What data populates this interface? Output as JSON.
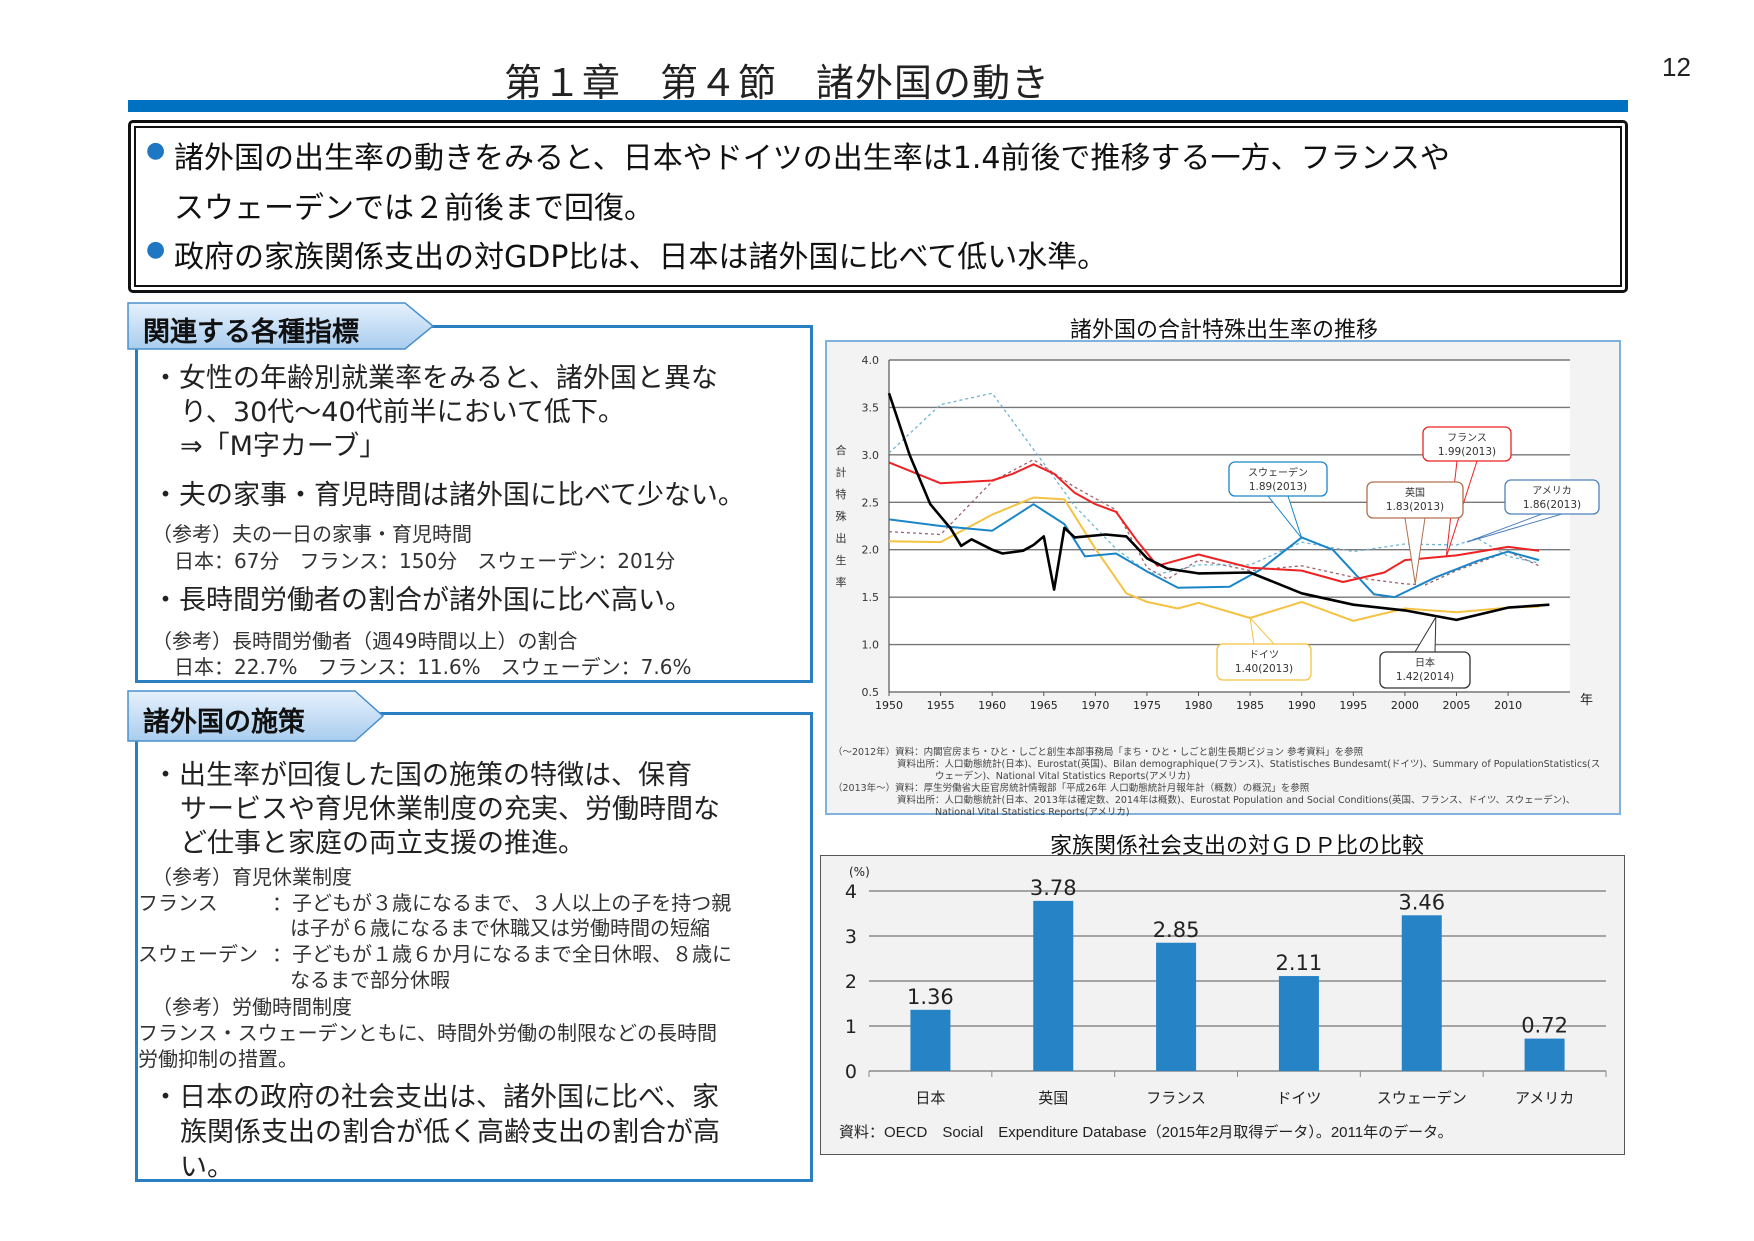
{
  "header": {
    "title": "第１章　第４節　諸外国の動き",
    "page_number": "12",
    "accent_color": "#0070c0"
  },
  "summary": {
    "lines": [
      "諸外国の出生率の動きをみると、日本やドイツの出生率は1.4前後で推移する一方、フランスや",
      "スウェーデンでは２前後まで回復。",
      "政府の家族関係支出の対GDP比は、日本は諸外国に比べて低い水準。"
    ]
  },
  "indicators": {
    "heading": "関連する各種指標",
    "items": [
      "・女性の年齢別就業率をみると、諸外国と異な",
      "り、30代～40代前半において低下。",
      "⇒「M字カーブ」",
      "・夫の家事・育児時間は諸外国に比べて少ない。",
      "（参考）夫の一日の家事・育児時間",
      "日本：67分　フランス：150分　スウェーデン：201分",
      "・長時間労働者の割合が諸外国に比べ高い。",
      "（参考）長時間労働者（週49時間以上）の割合",
      "日本：22.7%　フランス：11.6%　スウェーデン：7.6%"
    ]
  },
  "policies": {
    "heading": "諸外国の施策",
    "items": [
      "・出生率が回復した国の施策の特徴は、保育",
      "サービスや育児休業制度の充実、労働時間な",
      "ど仕事と家庭の両立支援の推進。",
      "（参考）育児休業制度",
      "フランス",
      "：子どもが３歳になるまで、３人以上の子を持つ親",
      "は子が６歳になるまで休職又は労働時間の短縮",
      "スウェーデン",
      "：子どもが１歳６か月になるまで全日休暇、８歳に",
      "なるまで部分休暇",
      "（参考）労働時間制度",
      "フランス・スウェーデンともに、時間外労働の制限などの長時間",
      "労働抑制の措置。",
      "・日本の政府の社会支出は、諸外国に比べ、家",
      "族関係支出の割合が低く高齢支出の割合が高",
      "い。"
    ]
  },
  "chart_data": [
    {
      "type": "line",
      "title": "諸外国の合計特殊出生率の推移",
      "xlabel": "年",
      "ylabel": "合計特殊出生率",
      "ylim": [
        0.5,
        4.0
      ],
      "yticks": [
        "4.0",
        "3.5",
        "3.0",
        "2.5",
        "2.0",
        "1.5",
        "1.0",
        "0.5"
      ],
      "xticks": [
        "1950",
        "1955",
        "1960",
        "1965",
        "1970",
        "1975",
        "1980",
        "1985",
        "1990",
        "1995",
        "2000",
        "2005",
        "2010"
      ],
      "grid": true,
      "series": [
        {
          "name": "日本",
          "color": "#000000",
          "style": "solid",
          "x": [
            1950,
            1952,
            1954,
            1956,
            1957,
            1958,
            1960,
            1961,
            1963,
            1964,
            1965,
            1966,
            1967,
            1968,
            1971,
            1973,
            1975,
            1977,
            1980,
            1985,
            1990,
            1995,
            2000,
            2005,
            2010,
            2014
          ],
          "values": [
            3.65,
            3.0,
            2.48,
            2.22,
            2.04,
            2.11,
            2.0,
            1.96,
            1.99,
            2.05,
            2.14,
            1.58,
            2.23,
            2.13,
            2.16,
            2.14,
            1.91,
            1.8,
            1.75,
            1.76,
            1.54,
            1.42,
            1.36,
            1.26,
            1.39,
            1.42
          ]
        },
        {
          "name": "フランス",
          "color": "#ee2222",
          "style": "solid",
          "x": [
            1950,
            1955,
            1960,
            1962,
            1964,
            1966,
            1968,
            1970,
            1972,
            1974,
            1976,
            1980,
            1985,
            1990,
            1994,
            1998,
            2000,
            2005,
            2010,
            2013
          ],
          "values": [
            2.92,
            2.7,
            2.73,
            2.8,
            2.9,
            2.8,
            2.6,
            2.48,
            2.4,
            2.1,
            1.83,
            1.95,
            1.81,
            1.78,
            1.66,
            1.76,
            1.89,
            1.94,
            2.03,
            1.99
          ]
        },
        {
          "name": "スウェーデン",
          "color": "#1a86c8",
          "style": "solid",
          "x": [
            1950,
            1955,
            1960,
            1964,
            1967,
            1969,
            1972,
            1975,
            1978,
            1983,
            1986,
            1990,
            1993,
            1997,
            1999,
            2003,
            2007,
            2010,
            2013
          ],
          "values": [
            2.32,
            2.25,
            2.2,
            2.48,
            2.27,
            1.93,
            1.96,
            1.77,
            1.6,
            1.61,
            1.79,
            2.13,
            2.0,
            1.53,
            1.5,
            1.71,
            1.88,
            1.98,
            1.89
          ]
        },
        {
          "name": "ドイツ",
          "color": "#f5c242",
          "style": "solid",
          "x": [
            1950,
            1955,
            1960,
            1964,
            1967,
            1970,
            1973,
            1975,
            1978,
            1980,
            1985,
            1990,
            1995,
            2000,
            2005,
            2010,
            2013
          ],
          "values": [
            2.09,
            2.08,
            2.37,
            2.55,
            2.53,
            2.01,
            1.54,
            1.45,
            1.38,
            1.44,
            1.28,
            1.45,
            1.25,
            1.38,
            1.34,
            1.39,
            1.4
          ]
        },
        {
          "name": "アメリカ",
          "color": "#6fb3d6",
          "style": "dashed",
          "x": [
            1950,
            1955,
            1960,
            1965,
            1968,
            1972,
            1975,
            1976,
            1980,
            1985,
            1990,
            1995,
            2000,
            2005,
            2007,
            2010,
            2013
          ],
          "values": [
            3.02,
            3.53,
            3.65,
            2.91,
            2.46,
            2.01,
            1.77,
            1.74,
            1.84,
            1.84,
            2.08,
            1.98,
            2.06,
            2.05,
            2.12,
            1.93,
            1.86
          ]
        },
        {
          "name": "英国",
          "color": "#a0606a",
          "style": "dashed",
          "x": [
            1950,
            1955,
            1960,
            1964,
            1968,
            1972,
            1975,
            1977,
            1980,
            1985,
            1990,
            1995,
            2000,
            2002,
            2005,
            2010,
            2013
          ],
          "values": [
            2.19,
            2.16,
            2.72,
            2.95,
            2.66,
            2.42,
            1.81,
            1.69,
            1.89,
            1.78,
            1.83,
            1.71,
            1.64,
            1.63,
            1.78,
            1.98,
            1.83
          ]
        }
      ],
      "annotations": [
        {
          "label": "フランス",
          "value": "1.99(2013)",
          "color": "#ee2222"
        },
        {
          "label": "スウェーデン",
          "value": "1.89(2013)",
          "color": "#1a86c8"
        },
        {
          "label": "英国",
          "value": "1.83(2013)",
          "color": "#b07050"
        },
        {
          "label": "アメリカ",
          "value": "1.86(2013)",
          "color": "#4f81bd"
        },
        {
          "label": "ドイツ",
          "value": "1.40(2013)",
          "color": "#f5c242"
        },
        {
          "label": "日本",
          "value": "1.42(2014)",
          "color": "#333333"
        }
      ],
      "notes": [
        "（～2012年）資料：内閣官房まち・ひと・しごと創生本部事務局「まち・ひと・しごと創生長期ビジョン 参考資料」を参照",
        "資料出所：人口動態統計(日本)、Eurostat(英国)、Bilan demographique(フランス)、Statistisches Bundesamt(ドイツ)、Summary of PopulationStatistics(ス",
        "ウェーデン)、National Vital Statistics Reports(アメリカ)",
        "（2013年～）資料：厚生労働省大臣官房統計情報部「平成26年 人口動態統計月報年計（概数）の概況」を参照",
        "資料出所：人口動態統計(日本、2013年は確定数、2014年は概数)、Eurostat Population and Social Conditions(英国、フランス、ドイツ、スウェーデン)、",
        "National Vital Statistics Reports(アメリカ)"
      ]
    },
    {
      "type": "bar",
      "title": "家族関係社会支出の対ＧＤＰ比の比較",
      "ylabel": "(%)",
      "ylim": [
        0,
        4
      ],
      "yticks": [
        "4",
        "3",
        "2",
        "1",
        "0"
      ],
      "grid": true,
      "categories": [
        "日本",
        "英国",
        "フランス",
        "ドイツ",
        "スウェーデン",
        "アメリカ"
      ],
      "values": [
        1.36,
        3.78,
        2.85,
        2.11,
        3.46,
        0.72
      ],
      "value_labels": [
        "1.36",
        "3.78",
        "2.85",
        "2.11",
        "3.46",
        "0.72"
      ],
      "bar_color": "#2683c6",
      "source": "資料：OECD　Social　Expenditure Database（2015年2月取得データ）。2011年のデータ。"
    }
  ]
}
